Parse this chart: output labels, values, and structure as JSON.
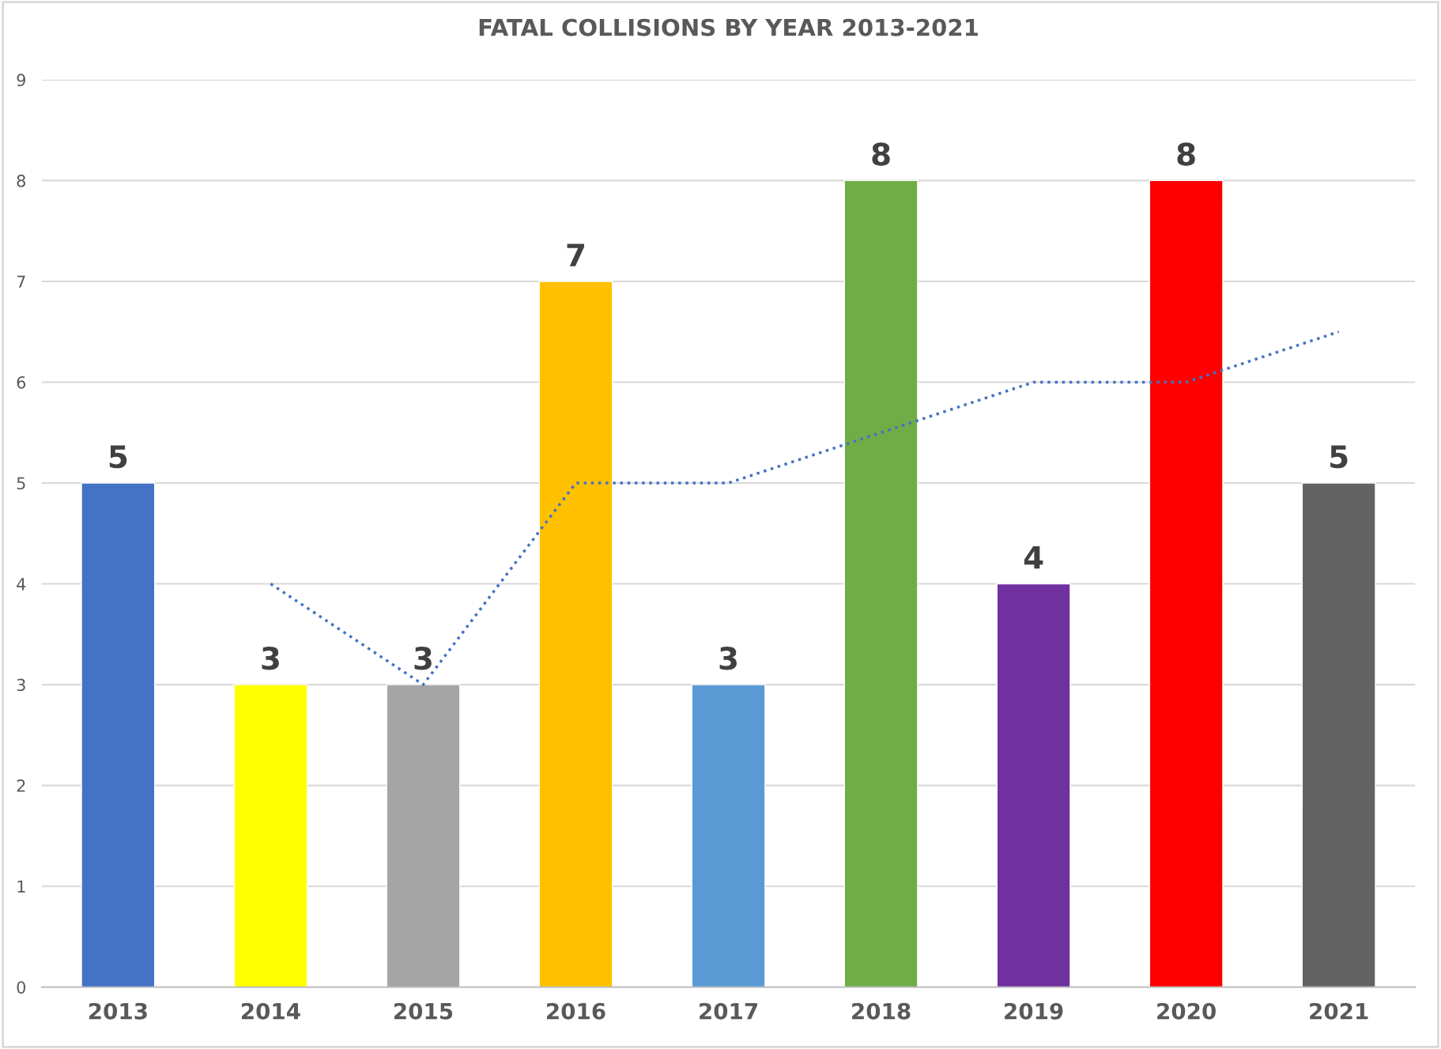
{
  "chart_data": {
    "type": "bar",
    "title": "FATAL COLLISIONS BY YEAR 2013-2021",
    "categories": [
      "2013",
      "2014",
      "2015",
      "2016",
      "2017",
      "2018",
      "2019",
      "2020",
      "2021"
    ],
    "series": [
      {
        "values": [
          5,
          3,
          3,
          7,
          3,
          8,
          4,
          8,
          5
        ],
        "colors": [
          "#4472c4",
          "#ffff00",
          "#a5a5a5",
          "#ffc000",
          "#5b9bd5",
          "#70ad47",
          "#7030a0",
          "#ff0000",
          "#636363"
        ],
        "value_labels": [
          "5",
          "3",
          "3",
          "7",
          "3",
          "8",
          "4",
          "8",
          "5"
        ]
      },
      {
        "type": "line",
        "color": "#4472c4",
        "line_style": "dotted",
        "values": [
          null,
          4,
          3,
          5,
          5,
          5.5,
          6,
          6,
          6.5
        ]
      }
    ],
    "ylim": [
      0,
      9
    ],
    "yticks": [
      0,
      1,
      2,
      3,
      4,
      5,
      6,
      7,
      8,
      9
    ],
    "grid": "y",
    "legend": false
  }
}
